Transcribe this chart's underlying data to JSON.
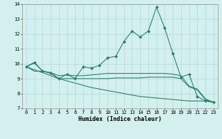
{
  "xlabel": "Humidex (Indice chaleur)",
  "background_color": "#d4f0ee",
  "grid_color": "#b8dedd",
  "line_color": "#2e7d6e",
  "xlim": [
    -0.5,
    23.5
  ],
  "ylim": [
    7,
    14
  ],
  "yticks": [
    7,
    8,
    9,
    10,
    11,
    12,
    13,
    14
  ],
  "xticks": [
    0,
    1,
    2,
    3,
    4,
    5,
    6,
    7,
    8,
    9,
    10,
    11,
    12,
    13,
    14,
    15,
    16,
    17,
    18,
    19,
    20,
    21,
    22,
    23
  ],
  "line1_x": [
    0,
    1,
    2,
    3,
    4,
    5,
    6,
    7,
    8,
    9,
    10,
    11,
    12,
    13,
    14,
    15,
    16,
    17,
    18,
    19,
    20,
    21,
    22,
    23
  ],
  "line1_y": [
    9.8,
    10.1,
    9.5,
    9.4,
    9.0,
    9.3,
    9.0,
    9.8,
    9.7,
    9.9,
    10.4,
    10.5,
    11.5,
    12.2,
    11.8,
    12.2,
    13.8,
    12.4,
    10.7,
    9.1,
    9.3,
    7.8,
    7.5,
    7.4
  ],
  "line2_x": [
    0,
    1,
    2,
    3,
    4,
    5,
    6,
    7,
    8,
    9,
    10,
    11,
    12,
    13,
    14,
    15,
    16,
    17,
    18,
    19,
    20,
    21,
    22,
    23
  ],
  "line2_y": [
    9.8,
    10.05,
    9.5,
    9.4,
    9.2,
    9.25,
    9.2,
    9.2,
    9.25,
    9.3,
    9.35,
    9.35,
    9.35,
    9.35,
    9.35,
    9.35,
    9.35,
    9.35,
    9.3,
    9.2,
    8.5,
    8.3,
    7.65,
    7.4
  ],
  "line3_x": [
    0,
    1,
    2,
    3,
    4,
    5,
    6,
    7,
    8,
    9,
    10,
    11,
    12,
    13,
    14,
    15,
    16,
    17,
    18,
    19,
    20,
    21,
    22,
    23
  ],
  "line3_y": [
    9.8,
    9.5,
    9.5,
    9.35,
    9.0,
    9.0,
    9.0,
    9.0,
    9.0,
    9.0,
    9.0,
    9.05,
    9.05,
    9.05,
    9.05,
    9.1,
    9.1,
    9.1,
    9.1,
    9.0,
    8.45,
    8.25,
    7.6,
    7.4
  ],
  "line4_x": [
    0,
    1,
    2,
    3,
    4,
    5,
    6,
    7,
    8,
    9,
    10,
    11,
    12,
    13,
    14,
    15,
    16,
    17,
    18,
    19,
    20,
    21,
    22,
    23
  ],
  "line4_y": [
    9.8,
    9.6,
    9.4,
    9.2,
    9.0,
    8.85,
    8.7,
    8.55,
    8.4,
    8.3,
    8.2,
    8.1,
    8.0,
    7.9,
    7.8,
    7.75,
    7.7,
    7.65,
    7.6,
    7.55,
    7.5,
    7.5,
    7.5,
    7.45
  ]
}
